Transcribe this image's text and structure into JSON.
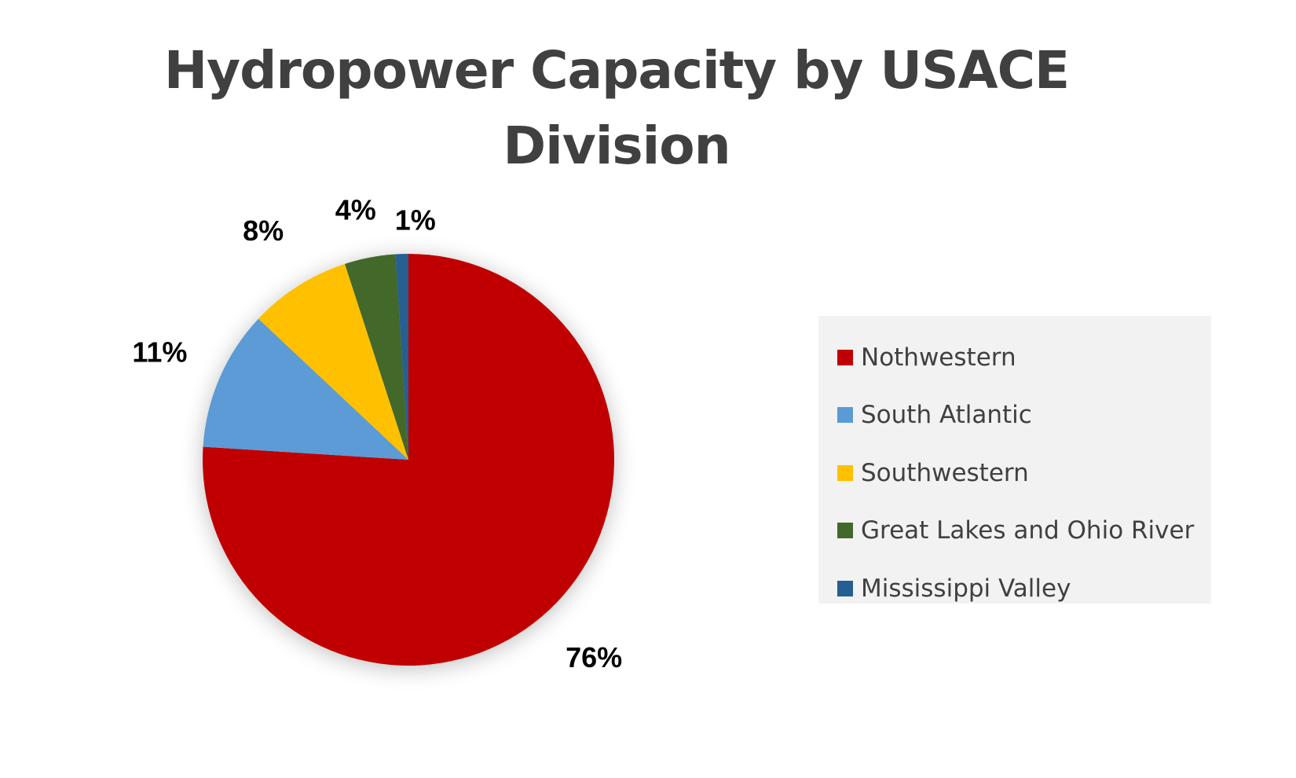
{
  "chart_data": {
    "type": "pie",
    "title_lines": [
      "Hydropower Capacity by USACE",
      "Division"
    ],
    "categories": [
      "Nothwestern",
      "South Atlantic",
      "Southwestern",
      "Great Lakes and Ohio River",
      "Mississippi Valley"
    ],
    "values": [
      76,
      11,
      8,
      4,
      1
    ],
    "labels": [
      "76%",
      "11%",
      "8%",
      "4%",
      "1%"
    ],
    "colors": [
      "#c00000",
      "#5b9bd5",
      "#ffc000",
      "#43682b",
      "#255e91"
    ],
    "legend_position": "right",
    "start_angle_deg": 0,
    "direction": "clockwise"
  }
}
